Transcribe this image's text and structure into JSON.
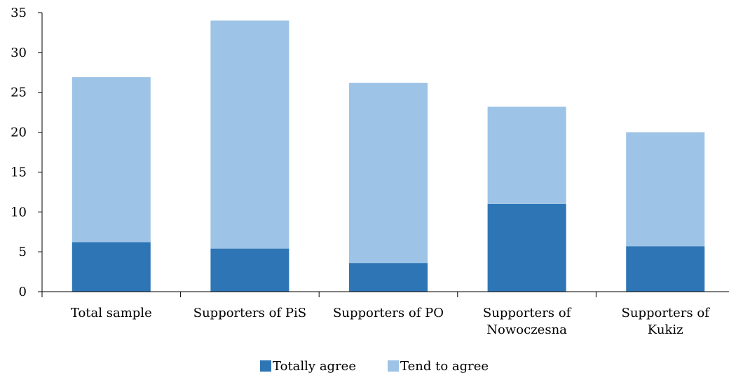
{
  "chart_data": {
    "type": "bar",
    "stacked": true,
    "categories": [
      [
        "Total sample"
      ],
      [
        "Supporters of PiS"
      ],
      [
        "Supporters of PO"
      ],
      [
        "Supporters of",
        "Nowoczesna"
      ],
      [
        "Supporters of",
        "Kukiz"
      ]
    ],
    "series": [
      {
        "name": "Totally agree",
        "color": "#2e75b6",
        "values": [
          6.2,
          5.4,
          3.6,
          11.0,
          5.7
        ]
      },
      {
        "name": "Tend to agree",
        "color": "#9dc3e6",
        "values": [
          20.7,
          28.6,
          22.6,
          12.2,
          14.3
        ]
      }
    ],
    "ylim": [
      0,
      35
    ],
    "yticks": [
      0,
      5,
      10,
      15,
      20,
      25,
      30,
      35
    ],
    "grid": false,
    "legend_position": "bottom-center"
  }
}
